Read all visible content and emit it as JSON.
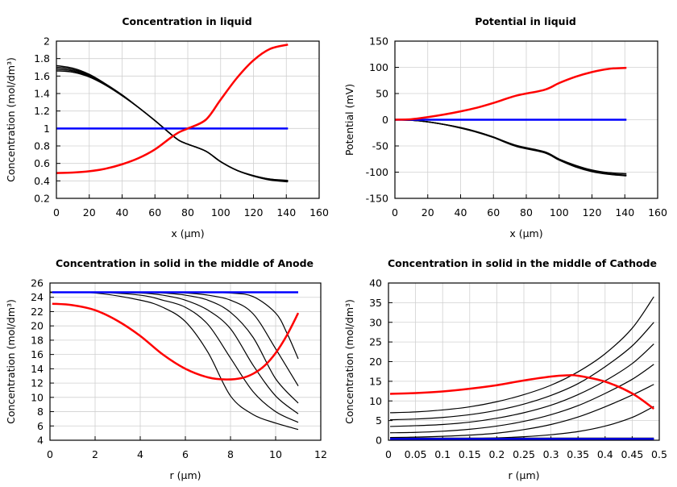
{
  "chart_data": [
    {
      "type": "line",
      "title": "Concentration in liquid",
      "xlabel": "x (µm)",
      "ylabel": "Concentration (mol/dm³)",
      "xlim": [
        0,
        160
      ],
      "ylim": [
        0.2,
        2
      ],
      "xticks": [
        "0",
        "20",
        "40",
        "60",
        "80",
        "100",
        "120",
        "140",
        "160"
      ],
      "yticks": [
        "0.2",
        "0.4",
        "0.6",
        "0.8",
        "1",
        "1.2",
        "1.4",
        "1.6",
        "1.8",
        "2"
      ],
      "grid": true,
      "series": [
        {
          "color": "#000000",
          "width": 1.5,
          "x": [
            0,
            10,
            20,
            30,
            40,
            50,
            60,
            70,
            75,
            80,
            91,
            100,
            110,
            120,
            130,
            141
          ],
          "y": [
            1.72,
            1.69,
            1.62,
            1.51,
            1.385,
            1.24,
            1.09,
            0.93,
            0.86,
            0.82,
            0.74,
            0.62,
            0.52,
            0.46,
            0.42,
            0.405
          ]
        },
        {
          "color": "#000000",
          "width": 1.5,
          "x": [
            0,
            10,
            20,
            30,
            40,
            50,
            60,
            70,
            75,
            80,
            91,
            100,
            110,
            120,
            130,
            141
          ],
          "y": [
            1.7,
            1.675,
            1.61,
            1.505,
            1.38,
            1.24,
            1.09,
            0.93,
            0.86,
            0.82,
            0.74,
            0.62,
            0.52,
            0.46,
            0.42,
            0.4
          ]
        },
        {
          "color": "#000000",
          "width": 1.5,
          "x": [
            0,
            10,
            20,
            30,
            40,
            50,
            60,
            70,
            75,
            80,
            91,
            100,
            110,
            120,
            130,
            141
          ],
          "y": [
            1.68,
            1.66,
            1.6,
            1.5,
            1.38,
            1.24,
            1.09,
            0.93,
            0.86,
            0.82,
            0.74,
            0.62,
            0.52,
            0.455,
            0.415,
            0.395
          ]
        },
        {
          "color": "#000000",
          "width": 1.5,
          "x": [
            0,
            10,
            20,
            30,
            40,
            50,
            60,
            70,
            75,
            80,
            91,
            100,
            110,
            120,
            130,
            141
          ],
          "y": [
            1.66,
            1.645,
            1.59,
            1.495,
            1.375,
            1.24,
            1.09,
            0.93,
            0.86,
            0.82,
            0.74,
            0.62,
            0.52,
            0.455,
            0.41,
            0.39
          ]
        },
        {
          "color": "#0000ff",
          "width": 2.5,
          "x": [
            0,
            141
          ],
          "y": [
            1,
            1
          ]
        },
        {
          "color": "#ff0000",
          "width": 2.5,
          "x": [
            0,
            10,
            20,
            30,
            40,
            50,
            60,
            70,
            75,
            80,
            91,
            100,
            110,
            120,
            130,
            141
          ],
          "y": [
            0.49,
            0.495,
            0.51,
            0.54,
            0.59,
            0.66,
            0.76,
            0.9,
            0.96,
            1.0,
            1.1,
            1.33,
            1.58,
            1.78,
            1.91,
            1.96
          ]
        }
      ]
    },
    {
      "type": "line",
      "title": "Potential in liquid",
      "xlabel": "x (µm)",
      "ylabel": "Potential (mV)",
      "xlim": [
        0,
        160
      ],
      "ylim": [
        -150,
        150
      ],
      "xticks": [
        "0",
        "20",
        "40",
        "60",
        "80",
        "100",
        "120",
        "140",
        "160"
      ],
      "yticks": [
        "-150",
        "-100",
        "-50",
        "0",
        "50",
        "100",
        "150"
      ],
      "grid": true,
      "series": [
        {
          "color": "#000000",
          "width": 1.5,
          "x": [
            0,
            10,
            20,
            30,
            40,
            50,
            60,
            74,
            91,
            100,
            110,
            120,
            130,
            141
          ],
          "y": [
            0,
            -1,
            -4,
            -9,
            -15,
            -23,
            -33,
            -49,
            -61,
            -75,
            -87,
            -96,
            -101,
            -103
          ]
        },
        {
          "color": "#000000",
          "width": 1.5,
          "x": [
            0,
            10,
            20,
            30,
            40,
            50,
            60,
            74,
            91,
            100,
            110,
            120,
            130,
            141
          ],
          "y": [
            0,
            -1,
            -4,
            -9,
            -15,
            -23,
            -33,
            -50,
            -62,
            -76,
            -89,
            -98,
            -103,
            -106
          ]
        },
        {
          "color": "#000000",
          "width": 1.5,
          "x": [
            0,
            10,
            20,
            30,
            40,
            50,
            60,
            74,
            91,
            100,
            110,
            120,
            130,
            141
          ],
          "y": [
            0,
            -1,
            -4,
            -9,
            -16,
            -24,
            -34,
            -51,
            -63,
            -77,
            -90,
            -99,
            -104,
            -107
          ]
        },
        {
          "color": "#0000ff",
          "width": 2.5,
          "x": [
            0,
            141
          ],
          "y": [
            0,
            0
          ]
        },
        {
          "color": "#ff0000",
          "width": 2.5,
          "x": [
            0,
            10,
            20,
            30,
            40,
            50,
            60,
            74,
            91,
            100,
            110,
            120,
            130,
            141
          ],
          "y": [
            0,
            1,
            5,
            10,
            16,
            23,
            32,
            46,
            57,
            70,
            82,
            91,
            97,
            99
          ]
        }
      ]
    },
    {
      "type": "line",
      "title": "Concentration in solid in the middle of Anode",
      "xlabel": "r (µm)",
      "ylabel": "Concentration (mol/dm³)",
      "xlim": [
        0,
        12
      ],
      "ylim": [
        4,
        26
      ],
      "xticks": [
        "0",
        "2",
        "4",
        "6",
        "8",
        "10",
        "12"
      ],
      "yticks": [
        "4",
        "6",
        "8",
        "10",
        "12",
        "14",
        "16",
        "18",
        "20",
        "22",
        "24",
        "26"
      ],
      "grid": true,
      "series": [
        {
          "color": "#000000",
          "width": 1.2,
          "x": [
            0,
            2,
            4,
            5,
            6,
            7,
            8,
            9,
            10,
            11
          ],
          "y": [
            24.7,
            24.6,
            23.6,
            22.6,
            20.6,
            16.3,
            10.2,
            7.6,
            6.4,
            5.5
          ]
        },
        {
          "color": "#000000",
          "width": 1.2,
          "x": [
            0,
            2,
            4,
            5,
            6,
            7,
            8,
            9,
            10,
            11
          ],
          "y": [
            24.7,
            24.7,
            24.3,
            23.6,
            22.6,
            20.2,
            15.5,
            10.8,
            8.0,
            6.5
          ]
        },
        {
          "color": "#000000",
          "width": 1.2,
          "x": [
            0,
            2,
            4,
            5,
            6,
            7,
            8,
            9,
            10,
            11
          ],
          "y": [
            24.7,
            24.7,
            24.6,
            24.3,
            23.6,
            22.2,
            19.6,
            14.5,
            10.2,
            7.7
          ]
        },
        {
          "color": "#000000",
          "width": 1.2,
          "x": [
            0,
            2,
            4,
            5,
            6,
            7,
            8,
            9,
            10,
            11
          ],
          "y": [
            24.7,
            24.7,
            24.7,
            24.6,
            24.3,
            23.6,
            21.9,
            18.4,
            12.6,
            9.2
          ]
        },
        {
          "color": "#000000",
          "width": 1.2,
          "x": [
            0,
            2,
            4,
            5,
            6,
            7,
            8,
            9,
            10,
            11
          ],
          "y": [
            24.7,
            24.7,
            24.7,
            24.7,
            24.6,
            24.3,
            23.6,
            21.7,
            16.8,
            11.6
          ]
        },
        {
          "color": "#000000",
          "width": 1.2,
          "x": [
            0,
            2,
            4,
            5,
            6,
            7,
            8,
            9,
            10,
            10.5,
            11
          ],
          "y": [
            24.7,
            24.7,
            24.7,
            24.7,
            24.7,
            24.7,
            24.6,
            24.1,
            21.8,
            19.0,
            15.4
          ]
        },
        {
          "color": "#0000ff",
          "width": 2.5,
          "x": [
            0.1,
            11
          ],
          "y": [
            24.7,
            24.7
          ]
        },
        {
          "color": "#ff0000",
          "width": 2.5,
          "x": [
            0.1,
            1,
            2,
            3,
            4,
            5,
            6,
            7,
            7.8,
            8.5,
            9,
            9.5,
            10,
            10.5,
            11
          ],
          "y": [
            23.1,
            22.9,
            22.2,
            20.7,
            18.6,
            16.0,
            14.0,
            12.8,
            12.5,
            12.7,
            13.3,
            14.4,
            16.2,
            18.7,
            21.8
          ]
        }
      ]
    },
    {
      "type": "line",
      "title": "Concentration in solid in the middle of Cathode",
      "xlabel": "r (µm)",
      "ylabel": "Concentration (mol/dm³)",
      "xlim": [
        0,
        0.5
      ],
      "ylim": [
        0,
        40
      ],
      "xticks": [
        "0",
        "0.05",
        "0.1",
        "0.15",
        "0.2",
        "0.25",
        "0.3",
        "0.35",
        "0.4",
        "0.45",
        "0.5"
      ],
      "yticks": [
        "0",
        "5",
        "10",
        "15",
        "20",
        "25",
        "30",
        "35",
        "40"
      ],
      "grid": true,
      "series": [
        {
          "color": "#000000",
          "width": 1.2,
          "x": [
            0.003,
            0.05,
            0.1,
            0.15,
            0.2,
            0.25,
            0.3,
            0.35,
            0.4,
            0.45,
            0.49
          ],
          "y": [
            7.0,
            7.2,
            7.7,
            8.5,
            9.8,
            11.6,
            14.0,
            17.4,
            22.0,
            28.5,
            36.5
          ]
        },
        {
          "color": "#000000",
          "width": 1.2,
          "x": [
            0.003,
            0.05,
            0.1,
            0.15,
            0.2,
            0.25,
            0.3,
            0.35,
            0.4,
            0.45,
            0.49
          ],
          "y": [
            5.2,
            5.4,
            5.8,
            6.5,
            7.6,
            9.2,
            11.4,
            14.4,
            18.7,
            24.0,
            30.0
          ]
        },
        {
          "color": "#000000",
          "width": 1.2,
          "x": [
            0.003,
            0.05,
            0.1,
            0.15,
            0.2,
            0.25,
            0.3,
            0.35,
            0.4,
            0.45,
            0.49
          ],
          "y": [
            3.5,
            3.7,
            4.0,
            4.6,
            5.6,
            7.0,
            8.9,
            11.6,
            15.1,
            19.5,
            24.5
          ]
        },
        {
          "color": "#000000",
          "width": 1.2,
          "x": [
            0.003,
            0.05,
            0.1,
            0.15,
            0.2,
            0.25,
            0.3,
            0.35,
            0.4,
            0.45,
            0.49
          ],
          "y": [
            1.9,
            2.0,
            2.3,
            2.8,
            3.6,
            4.8,
            6.5,
            8.8,
            11.9,
            15.5,
            19.3
          ]
        },
        {
          "color": "#000000",
          "width": 1.2,
          "x": [
            0.003,
            0.05,
            0.1,
            0.15,
            0.2,
            0.25,
            0.3,
            0.35,
            0.4,
            0.45,
            0.49
          ],
          "y": [
            0.7,
            0.8,
            1.0,
            1.3,
            1.8,
            2.7,
            4.0,
            5.9,
            8.5,
            11.5,
            14.2
          ]
        },
        {
          "color": "#000000",
          "width": 1.2,
          "x": [
            0.003,
            0.05,
            0.1,
            0.15,
            0.2,
            0.25,
            0.3,
            0.35,
            0.4,
            0.45,
            0.49
          ],
          "y": [
            0.3,
            0.3,
            0.35,
            0.45,
            0.6,
            0.9,
            1.4,
            2.2,
            3.6,
            5.8,
            8.6
          ]
        },
        {
          "color": "#000000",
          "width": 2.5,
          "x": [
            0.003,
            0.49
          ],
          "y": [
            0.4,
            0.4
          ]
        },
        {
          "color": "#0000ff",
          "width": 2.5,
          "x": [
            0.003,
            0.49
          ],
          "y": [
            0.3,
            0.3
          ]
        },
        {
          "color": "#ff0000",
          "width": 2.5,
          "x": [
            0.003,
            0.05,
            0.1,
            0.15,
            0.2,
            0.25,
            0.3,
            0.33,
            0.35,
            0.4,
            0.45,
            0.49
          ],
          "y": [
            11.8,
            12.0,
            12.4,
            13.1,
            14.0,
            15.2,
            16.2,
            16.5,
            16.4,
            14.9,
            11.9,
            8.0
          ]
        }
      ]
    }
  ]
}
